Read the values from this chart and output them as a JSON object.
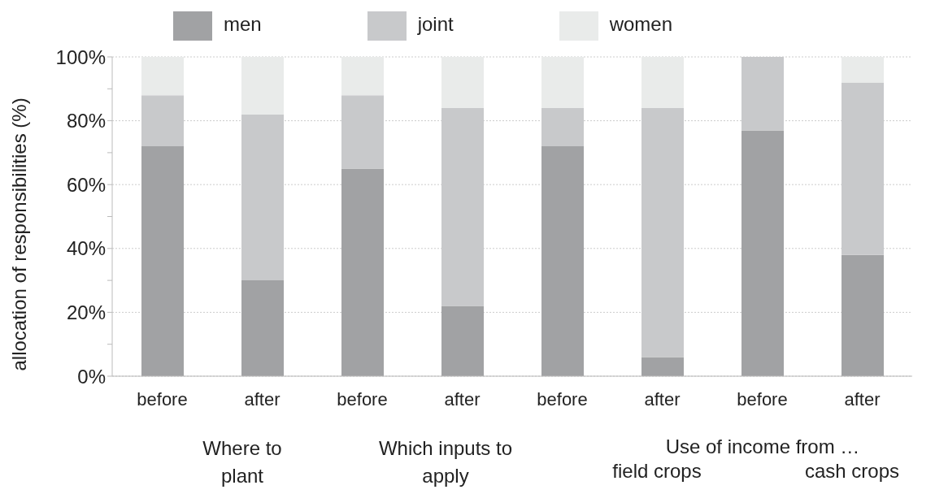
{
  "chart_data": {
    "type": "bar",
    "stacked": true,
    "ylabel": "allocation of responsibilities (%)",
    "categories": [
      "before",
      "after",
      "before",
      "after",
      "before",
      "after",
      "before",
      "after"
    ],
    "series": [
      {
        "name": "men",
        "color": "#a1a2a4",
        "values": [
          72,
          30,
          65,
          22,
          72,
          6,
          77,
          38
        ]
      },
      {
        "name": "joint",
        "color": "#c8c9cb",
        "values": [
          16,
          52,
          23,
          62,
          12,
          78,
          23,
          54
        ]
      },
      {
        "name": "women",
        "color": "#e9ebea",
        "values": [
          12,
          18,
          12,
          16,
          16,
          16,
          0,
          8
        ]
      }
    ],
    "ylim": [
      0,
      100
    ],
    "yticks": [
      {
        "value": 0,
        "label": "0%"
      },
      {
        "value": 10,
        "label": null
      },
      {
        "value": 20,
        "label": "20%"
      },
      {
        "value": 30,
        "label": null
      },
      {
        "value": 40,
        "label": "40%"
      },
      {
        "value": 50,
        "label": null
      },
      {
        "value": 60,
        "label": "60%"
      },
      {
        "value": 70,
        "label": null
      },
      {
        "value": 80,
        "label": "80%"
      },
      {
        "value": 90,
        "label": null
      },
      {
        "value": 100,
        "label": "100%"
      }
    ],
    "grid": "y",
    "legend": "top",
    "annotations": [
      "Where to plant",
      "Which inputs to apply",
      "Use of income from …",
      "field crops",
      "cash crops"
    ]
  }
}
